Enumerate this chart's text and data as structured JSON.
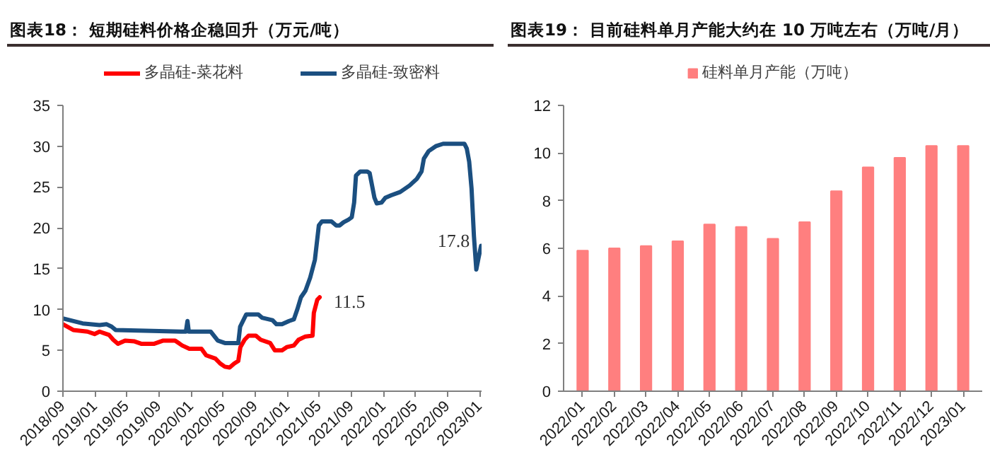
{
  "chart_data": [
    {
      "type": "line",
      "title": "图表18： 短期硅料价格企稳回升（万元/吨）",
      "series": [
        {
          "name": "多晶硅-菜花料",
          "color": "#ff0000",
          "x": [
            "2018-09-01",
            "2018-10-10",
            "2018-12-03",
            "2018-12-30",
            "2019-01-18",
            "2019-02-05",
            "2019-02-23",
            "2019-03-11",
            "2019-03-29",
            "2019-04-25",
            "2019-05-31",
            "2019-06-27",
            "2019-08-12",
            "2019-09-17",
            "2019-11-01",
            "2019-11-28",
            "2019-12-25",
            "2020-02-09",
            "2020-02-27",
            "2020-04-02",
            "2020-04-20",
            "2020-05-08",
            "2020-05-26",
            "2020-06-13",
            "2020-06-28",
            "2020-07-06",
            "2020-07-22",
            "2020-08-06",
            "2020-09-03",
            "2020-09-21",
            "2020-10-27",
            "2020-11-14",
            "2020-12-11",
            "2020-12-29",
            "2021-01-25",
            "2021-02-12",
            "2021-03-10",
            "2021-04-06",
            "2021-04-11",
            "2021-04-24",
            "2021-05-03"
          ],
          "values": [
            8.2,
            7.5,
            7.3,
            7.0,
            7.3,
            7.1,
            6.9,
            6.3,
            5.8,
            6.2,
            6.1,
            5.8,
            5.8,
            6.2,
            6.2,
            5.6,
            5.2,
            5.2,
            4.4,
            4.0,
            3.4,
            3.0,
            2.9,
            3.4,
            3.7,
            5.4,
            6.3,
            6.8,
            6.8,
            6.3,
            5.9,
            5.0,
            5.0,
            5.4,
            5.6,
            6.3,
            6.7,
            6.8,
            9.6,
            11.2,
            11.5
          ]
        },
        {
          "name": "多晶硅-致密料",
          "color": "#1b4f80",
          "x": [
            "2018-09-01",
            "2018-11-15",
            "2019-01-18",
            "2019-02-14",
            "2019-03-05",
            "2019-03-20",
            "2019-11-28",
            "2019-12-12",
            "2019-12-18",
            "2019-12-23",
            "2020-03-15",
            "2020-04-11",
            "2020-05-08",
            "2020-06-28",
            "2020-07-05",
            "2020-07-28",
            "2020-09-12",
            "2020-09-26",
            "2020-11-05",
            "2020-11-20",
            "2020-12-11",
            "2021-01-07",
            "2021-01-25",
            "2021-02-07",
            "2021-02-21",
            "2021-03-10",
            "2021-03-28",
            "2021-04-15",
            "2021-04-30",
            "2021-05-12",
            "2021-06-17",
            "2021-07-05",
            "2021-07-18",
            "2021-08-02",
            "2021-08-20",
            "2021-09-02",
            "2021-09-11",
            "2021-09-18",
            "2021-10-04",
            "2021-10-31",
            "2021-11-09",
            "2021-11-27",
            "2021-12-06",
            "2021-12-24",
            "2022-01-08",
            "2022-01-30",
            "2022-03-05",
            "2022-04-10",
            "2022-05-07",
            "2022-05-25",
            "2022-06-03",
            "2022-06-21",
            "2022-07-18",
            "2022-08-15",
            "2022-11-04",
            "2022-11-13",
            "2022-11-22",
            "2022-12-01",
            "2022-12-10",
            "2022-12-19",
            "2022-12-28",
            "2023-01-06"
          ],
          "values": [
            8.9,
            8.3,
            8.1,
            8.2,
            7.9,
            7.5,
            7.3,
            7.3,
            8.6,
            7.3,
            7.3,
            6.2,
            5.9,
            5.9,
            7.9,
            9.4,
            9.4,
            9.0,
            8.7,
            8.2,
            8.2,
            8.6,
            8.8,
            10.0,
            11.5,
            12.3,
            13.9,
            16.1,
            20.3,
            20.8,
            20.8,
            20.3,
            20.3,
            20.7,
            21.0,
            21.3,
            23.1,
            26.4,
            26.9,
            26.9,
            26.7,
            23.7,
            23.0,
            23.1,
            23.7,
            24.0,
            24.4,
            25.2,
            26.0,
            26.9,
            28.5,
            29.4,
            30.0,
            30.3,
            30.3,
            29.7,
            28.1,
            24.8,
            19.0,
            14.9,
            16.4,
            17.8
          ]
        }
      ],
      "xlim": [
        "2018-09-01",
        "2023-01-08"
      ],
      "xticks": [
        {
          "value": "2018-09",
          "label": "2018/09"
        },
        {
          "value": "2019-01",
          "label": "2019/01"
        },
        {
          "value": "2019-05",
          "label": "2019/05"
        },
        {
          "value": "2019-09",
          "label": "2019/09"
        },
        {
          "value": "2020-01",
          "label": "2020/01"
        },
        {
          "value": "2020-05",
          "label": "2020/05"
        },
        {
          "value": "2020-09",
          "label": "2020/09"
        },
        {
          "value": "2021-01",
          "label": "2021/01"
        },
        {
          "value": "2021-05",
          "label": "2021/05"
        },
        {
          "value": "2021-09",
          "label": "2021/09"
        },
        {
          "value": "2022-01",
          "label": "2022/01"
        },
        {
          "value": "2022-05",
          "label": "2022/05"
        },
        {
          "value": "2022-09",
          "label": "2022/09"
        },
        {
          "value": "2023-01",
          "label": "2023/01"
        }
      ],
      "ylim": [
        0,
        35
      ],
      "yticks": [
        0,
        5,
        10,
        15,
        20,
        25,
        30,
        35
      ],
      "legend": "top",
      "annotations": [
        {
          "text": "11.5",
          "x": "2021-05-03",
          "y": 11.5
        },
        {
          "text": "17.8",
          "x": "2023-01-06",
          "y": 17.8
        }
      ]
    },
    {
      "type": "bar",
      "title": "图表19： 目前硅料单月产能大约在 10 万吨左右（万吨/月）",
      "categories": [
        "2022/01",
        "2022/02",
        "2022/03",
        "2022/04",
        "2022/05",
        "2022/06",
        "2022/07",
        "2022/08",
        "2022/09",
        "2022/10",
        "2022/11",
        "2022/12",
        "2023/01"
      ],
      "series": [
        {
          "name": "硅料单月产能（万吨）",
          "color": "#ff7f7f",
          "values": [
            5.9,
            6.0,
            6.1,
            6.3,
            7.0,
            6.9,
            6.4,
            7.1,
            8.4,
            9.4,
            9.8,
            10.3,
            10.3
          ]
        }
      ],
      "ylim": [
        0,
        12
      ],
      "yticks": [
        0,
        2,
        4,
        6,
        8,
        10,
        12
      ],
      "legend": "top"
    }
  ]
}
